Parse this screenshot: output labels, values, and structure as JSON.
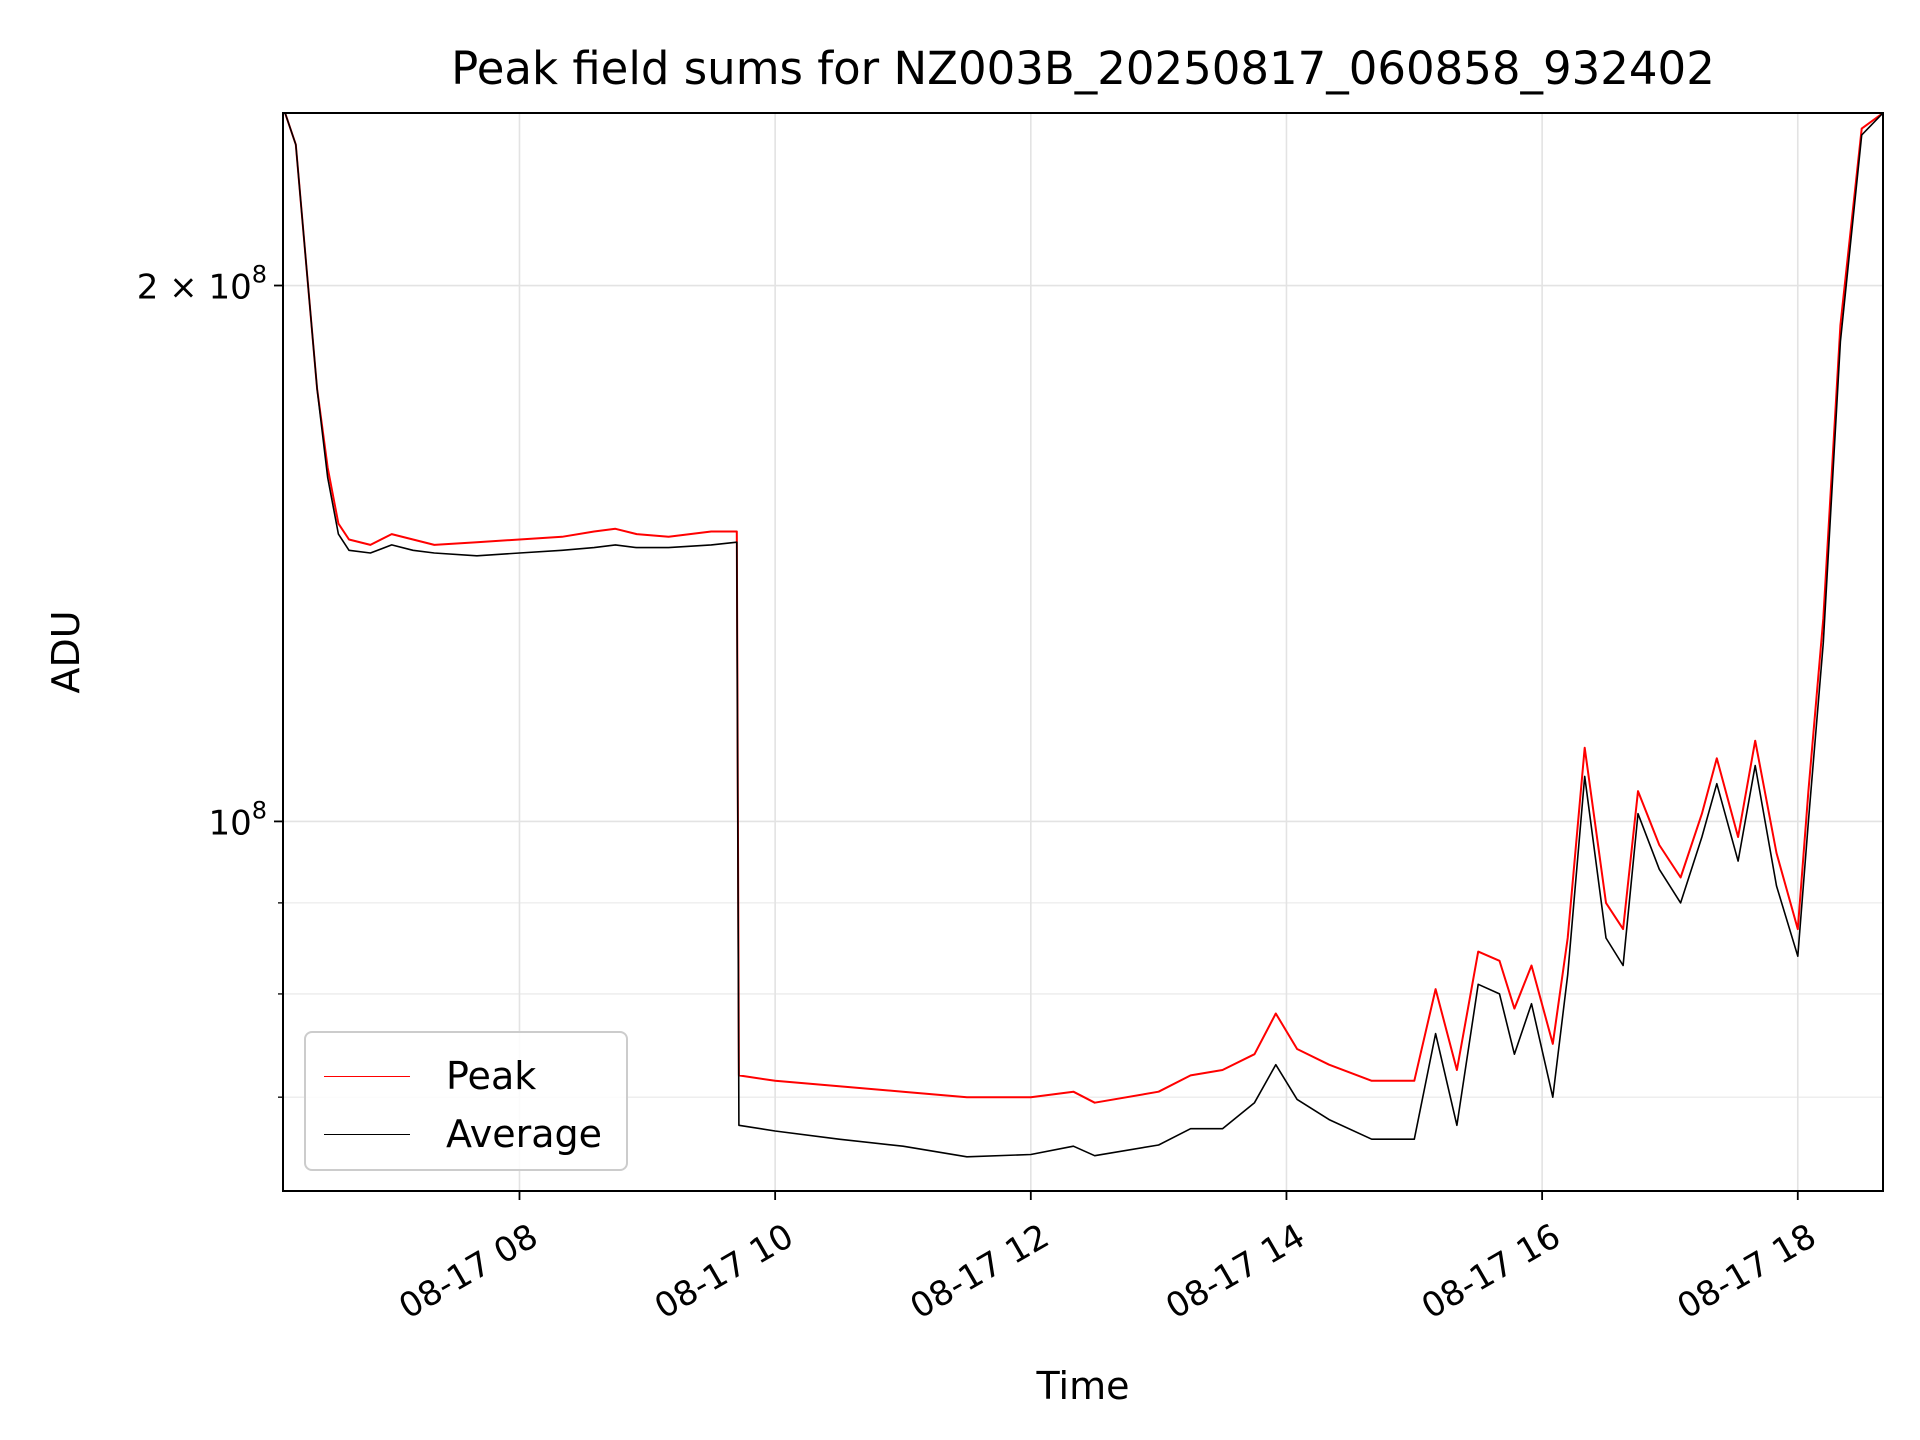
{
  "chart_data": {
    "type": "line",
    "title": "Peak field sums for NZ003B_20250817_060858_932402",
    "xlabel": "Time",
    "ylabel": "ADU",
    "y_scale": "log",
    "grid": true,
    "legend_placement": "lower-left",
    "xlim": [
      "2025-08-17 06:09",
      "2025-08-17 18:40"
    ],
    "ylim": [
      62000000,
      250000000
    ],
    "x_ticks": [
      "08-17 08",
      "08-17 10",
      "08-17 12",
      "08-17 14",
      "08-17 16",
      "08-17 18"
    ],
    "y_ticks": [
      {
        "value": 200000000,
        "base": "2 × 10",
        "exp": "8"
      },
      {
        "value": 100000000,
        "base": "10",
        "exp": "8"
      }
    ],
    "series": [
      {
        "name": "Peak",
        "color": "#ff0000",
        "points": [
          [
            "06:10",
            250000000
          ],
          [
            "06:15",
            240000000
          ],
          [
            "06:20",
            205000000
          ],
          [
            "06:25",
            175000000
          ],
          [
            "06:30",
            158000000
          ],
          [
            "06:35",
            147000000
          ],
          [
            "06:40",
            144000000
          ],
          [
            "06:50",
            143000000
          ],
          [
            "07:00",
            145000000
          ],
          [
            "07:10",
            144000000
          ],
          [
            "07:20",
            143000000
          ],
          [
            "07:40",
            143500000
          ],
          [
            "08:00",
            144000000
          ],
          [
            "08:20",
            144500000
          ],
          [
            "08:35",
            145500000
          ],
          [
            "08:45",
            146000000
          ],
          [
            "08:55",
            145000000
          ],
          [
            "09:10",
            144500000
          ],
          [
            "09:30",
            145500000
          ],
          [
            "09:42",
            145500000
          ],
          [
            "09:43",
            72000000
          ],
          [
            "10:00",
            71500000
          ],
          [
            "10:30",
            71000000
          ],
          [
            "11:00",
            70500000
          ],
          [
            "11:30",
            70000000
          ],
          [
            "12:00",
            70000000
          ],
          [
            "12:20",
            70500000
          ],
          [
            "12:30",
            69500000
          ],
          [
            "13:00",
            70500000
          ],
          [
            "13:15",
            72000000
          ],
          [
            "13:30",
            72500000
          ],
          [
            "13:45",
            74000000
          ],
          [
            "13:55",
            78000000
          ],
          [
            "14:05",
            74500000
          ],
          [
            "14:20",
            73000000
          ],
          [
            "14:40",
            71500000
          ],
          [
            "15:00",
            71500000
          ],
          [
            "15:10",
            80500000
          ],
          [
            "15:20",
            72500000
          ],
          [
            "15:30",
            84500000
          ],
          [
            "15:40",
            83500000
          ],
          [
            "15:47",
            78500000
          ],
          [
            "15:55",
            83000000
          ],
          [
            "16:05",
            75000000
          ],
          [
            "16:12",
            86000000
          ],
          [
            "16:20",
            110000000
          ],
          [
            "16:30",
            90000000
          ],
          [
            "16:38",
            87000000
          ],
          [
            "16:45",
            104000000
          ],
          [
            "16:55",
            97000000
          ],
          [
            "17:05",
            93000000
          ],
          [
            "17:15",
            101000000
          ],
          [
            "17:22",
            108500000
          ],
          [
            "17:32",
            98000000
          ],
          [
            "17:40",
            111000000
          ],
          [
            "17:50",
            96000000
          ],
          [
            "18:00",
            87000000
          ],
          [
            "18:05",
            104000000
          ],
          [
            "18:12",
            130000000
          ],
          [
            "18:20",
            190000000
          ],
          [
            "18:30",
            245000000
          ],
          [
            "18:40",
            250000000
          ]
        ]
      },
      {
        "name": "Average",
        "color": "#000000",
        "points": [
          [
            "06:10",
            250000000
          ],
          [
            "06:15",
            240000000
          ],
          [
            "06:20",
            205000000
          ],
          [
            "06:25",
            175000000
          ],
          [
            "06:30",
            156000000
          ],
          [
            "06:35",
            145000000
          ],
          [
            "06:40",
            142000000
          ],
          [
            "06:50",
            141500000
          ],
          [
            "07:00",
            143000000
          ],
          [
            "07:10",
            142000000
          ],
          [
            "07:20",
            141500000
          ],
          [
            "07:40",
            141000000
          ],
          [
            "08:00",
            141500000
          ],
          [
            "08:20",
            142000000
          ],
          [
            "08:35",
            142500000
          ],
          [
            "08:45",
            143000000
          ],
          [
            "08:55",
            142500000
          ],
          [
            "09:10",
            142500000
          ],
          [
            "09:30",
            143000000
          ],
          [
            "09:42",
            143500000
          ],
          [
            "09:43",
            67500000
          ],
          [
            "10:00",
            67000000
          ],
          [
            "10:30",
            66300000
          ],
          [
            "11:00",
            65700000
          ],
          [
            "11:30",
            64800000
          ],
          [
            "12:00",
            65000000
          ],
          [
            "12:20",
            65700000
          ],
          [
            "12:30",
            64900000
          ],
          [
            "13:00",
            65800000
          ],
          [
            "13:15",
            67200000
          ],
          [
            "13:30",
            67200000
          ],
          [
            "13:45",
            69500000
          ],
          [
            "13:55",
            73000000
          ],
          [
            "14:05",
            69800000
          ],
          [
            "14:20",
            68000000
          ],
          [
            "14:40",
            66300000
          ],
          [
            "15:00",
            66300000
          ],
          [
            "15:10",
            76000000
          ],
          [
            "15:20",
            67500000
          ],
          [
            "15:30",
            81000000
          ],
          [
            "15:40",
            80000000
          ],
          [
            "15:47",
            74000000
          ],
          [
            "15:55",
            79000000
          ],
          [
            "16:05",
            70000000
          ],
          [
            "16:12",
            82000000
          ],
          [
            "16:20",
            106000000
          ],
          [
            "16:30",
            86000000
          ],
          [
            "16:38",
            83000000
          ],
          [
            "16:45",
            101000000
          ],
          [
            "16:55",
            94000000
          ],
          [
            "17:05",
            90000000
          ],
          [
            "17:15",
            98000000
          ],
          [
            "17:22",
            105000000
          ],
          [
            "17:32",
            95000000
          ],
          [
            "17:40",
            107500000
          ],
          [
            "17:50",
            92000000
          ],
          [
            "18:00",
            84000000
          ],
          [
            "18:05",
            100000000
          ],
          [
            "18:12",
            126000000
          ],
          [
            "18:20",
            186000000
          ],
          [
            "18:30",
            243000000
          ],
          [
            "18:40",
            250000000
          ]
        ]
      }
    ]
  }
}
